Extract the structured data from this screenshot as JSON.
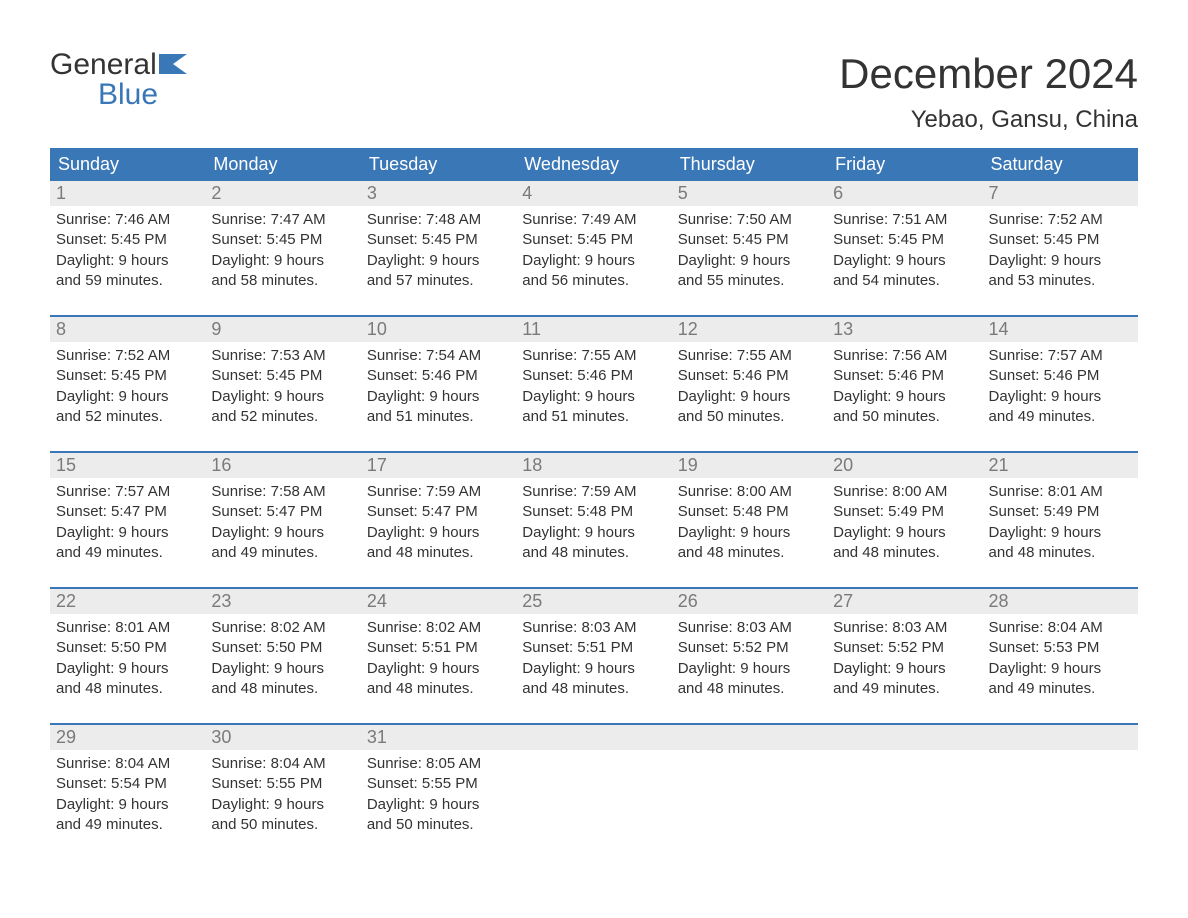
{
  "logo": {
    "word1": "General",
    "word2": "Blue",
    "color_general": "#333333",
    "color_blue": "#3a77b7",
    "flag_color": "#3a77b7"
  },
  "title": {
    "month": "December 2024",
    "location": "Yebao, Gansu, China",
    "month_fontsize": 42,
    "location_fontsize": 24,
    "text_color": "#333333"
  },
  "calendar": {
    "header_bg": "#3a77b7",
    "header_text_color": "#ffffff",
    "week_border_color": "#3a77b7",
    "daynum_bg": "#ececec",
    "daynum_color": "#7a7a7a",
    "body_text_color": "#333333",
    "background_color": "#ffffff",
    "header_fontsize": 18,
    "body_fontsize": 15,
    "days": [
      "Sunday",
      "Monday",
      "Tuesday",
      "Wednesday",
      "Thursday",
      "Friday",
      "Saturday"
    ],
    "weeks": [
      [
        {
          "n": "1",
          "sunrise": "Sunrise: 7:46 AM",
          "sunset": "Sunset: 5:45 PM",
          "d1": "Daylight: 9 hours",
          "d2": "and 59 minutes."
        },
        {
          "n": "2",
          "sunrise": "Sunrise: 7:47 AM",
          "sunset": "Sunset: 5:45 PM",
          "d1": "Daylight: 9 hours",
          "d2": "and 58 minutes."
        },
        {
          "n": "3",
          "sunrise": "Sunrise: 7:48 AM",
          "sunset": "Sunset: 5:45 PM",
          "d1": "Daylight: 9 hours",
          "d2": "and 57 minutes."
        },
        {
          "n": "4",
          "sunrise": "Sunrise: 7:49 AM",
          "sunset": "Sunset: 5:45 PM",
          "d1": "Daylight: 9 hours",
          "d2": "and 56 minutes."
        },
        {
          "n": "5",
          "sunrise": "Sunrise: 7:50 AM",
          "sunset": "Sunset: 5:45 PM",
          "d1": "Daylight: 9 hours",
          "d2": "and 55 minutes."
        },
        {
          "n": "6",
          "sunrise": "Sunrise: 7:51 AM",
          "sunset": "Sunset: 5:45 PM",
          "d1": "Daylight: 9 hours",
          "d2": "and 54 minutes."
        },
        {
          "n": "7",
          "sunrise": "Sunrise: 7:52 AM",
          "sunset": "Sunset: 5:45 PM",
          "d1": "Daylight: 9 hours",
          "d2": "and 53 minutes."
        }
      ],
      [
        {
          "n": "8",
          "sunrise": "Sunrise: 7:52 AM",
          "sunset": "Sunset: 5:45 PM",
          "d1": "Daylight: 9 hours",
          "d2": "and 52 minutes."
        },
        {
          "n": "9",
          "sunrise": "Sunrise: 7:53 AM",
          "sunset": "Sunset: 5:45 PM",
          "d1": "Daylight: 9 hours",
          "d2": "and 52 minutes."
        },
        {
          "n": "10",
          "sunrise": "Sunrise: 7:54 AM",
          "sunset": "Sunset: 5:46 PM",
          "d1": "Daylight: 9 hours",
          "d2": "and 51 minutes."
        },
        {
          "n": "11",
          "sunrise": "Sunrise: 7:55 AM",
          "sunset": "Sunset: 5:46 PM",
          "d1": "Daylight: 9 hours",
          "d2": "and 51 minutes."
        },
        {
          "n": "12",
          "sunrise": "Sunrise: 7:55 AM",
          "sunset": "Sunset: 5:46 PM",
          "d1": "Daylight: 9 hours",
          "d2": "and 50 minutes."
        },
        {
          "n": "13",
          "sunrise": "Sunrise: 7:56 AM",
          "sunset": "Sunset: 5:46 PM",
          "d1": "Daylight: 9 hours",
          "d2": "and 50 minutes."
        },
        {
          "n": "14",
          "sunrise": "Sunrise: 7:57 AM",
          "sunset": "Sunset: 5:46 PM",
          "d1": "Daylight: 9 hours",
          "d2": "and 49 minutes."
        }
      ],
      [
        {
          "n": "15",
          "sunrise": "Sunrise: 7:57 AM",
          "sunset": "Sunset: 5:47 PM",
          "d1": "Daylight: 9 hours",
          "d2": "and 49 minutes."
        },
        {
          "n": "16",
          "sunrise": "Sunrise: 7:58 AM",
          "sunset": "Sunset: 5:47 PM",
          "d1": "Daylight: 9 hours",
          "d2": "and 49 minutes."
        },
        {
          "n": "17",
          "sunrise": "Sunrise: 7:59 AM",
          "sunset": "Sunset: 5:47 PM",
          "d1": "Daylight: 9 hours",
          "d2": "and 48 minutes."
        },
        {
          "n": "18",
          "sunrise": "Sunrise: 7:59 AM",
          "sunset": "Sunset: 5:48 PM",
          "d1": "Daylight: 9 hours",
          "d2": "and 48 minutes."
        },
        {
          "n": "19",
          "sunrise": "Sunrise: 8:00 AM",
          "sunset": "Sunset: 5:48 PM",
          "d1": "Daylight: 9 hours",
          "d2": "and 48 minutes."
        },
        {
          "n": "20",
          "sunrise": "Sunrise: 8:00 AM",
          "sunset": "Sunset: 5:49 PM",
          "d1": "Daylight: 9 hours",
          "d2": "and 48 minutes."
        },
        {
          "n": "21",
          "sunrise": "Sunrise: 8:01 AM",
          "sunset": "Sunset: 5:49 PM",
          "d1": "Daylight: 9 hours",
          "d2": "and 48 minutes."
        }
      ],
      [
        {
          "n": "22",
          "sunrise": "Sunrise: 8:01 AM",
          "sunset": "Sunset: 5:50 PM",
          "d1": "Daylight: 9 hours",
          "d2": "and 48 minutes."
        },
        {
          "n": "23",
          "sunrise": "Sunrise: 8:02 AM",
          "sunset": "Sunset: 5:50 PM",
          "d1": "Daylight: 9 hours",
          "d2": "and 48 minutes."
        },
        {
          "n": "24",
          "sunrise": "Sunrise: 8:02 AM",
          "sunset": "Sunset: 5:51 PM",
          "d1": "Daylight: 9 hours",
          "d2": "and 48 minutes."
        },
        {
          "n": "25",
          "sunrise": "Sunrise: 8:03 AM",
          "sunset": "Sunset: 5:51 PM",
          "d1": "Daylight: 9 hours",
          "d2": "and 48 minutes."
        },
        {
          "n": "26",
          "sunrise": "Sunrise: 8:03 AM",
          "sunset": "Sunset: 5:52 PM",
          "d1": "Daylight: 9 hours",
          "d2": "and 48 minutes."
        },
        {
          "n": "27",
          "sunrise": "Sunrise: 8:03 AM",
          "sunset": "Sunset: 5:52 PM",
          "d1": "Daylight: 9 hours",
          "d2": "and 49 minutes."
        },
        {
          "n": "28",
          "sunrise": "Sunrise: 8:04 AM",
          "sunset": "Sunset: 5:53 PM",
          "d1": "Daylight: 9 hours",
          "d2": "and 49 minutes."
        }
      ],
      [
        {
          "n": "29",
          "sunrise": "Sunrise: 8:04 AM",
          "sunset": "Sunset: 5:54 PM",
          "d1": "Daylight: 9 hours",
          "d2": "and 49 minutes."
        },
        {
          "n": "30",
          "sunrise": "Sunrise: 8:04 AM",
          "sunset": "Sunset: 5:55 PM",
          "d1": "Daylight: 9 hours",
          "d2": "and 50 minutes."
        },
        {
          "n": "31",
          "sunrise": "Sunrise: 8:05 AM",
          "sunset": "Sunset: 5:55 PM",
          "d1": "Daylight: 9 hours",
          "d2": "and 50 minutes."
        },
        null,
        null,
        null,
        null
      ]
    ]
  }
}
